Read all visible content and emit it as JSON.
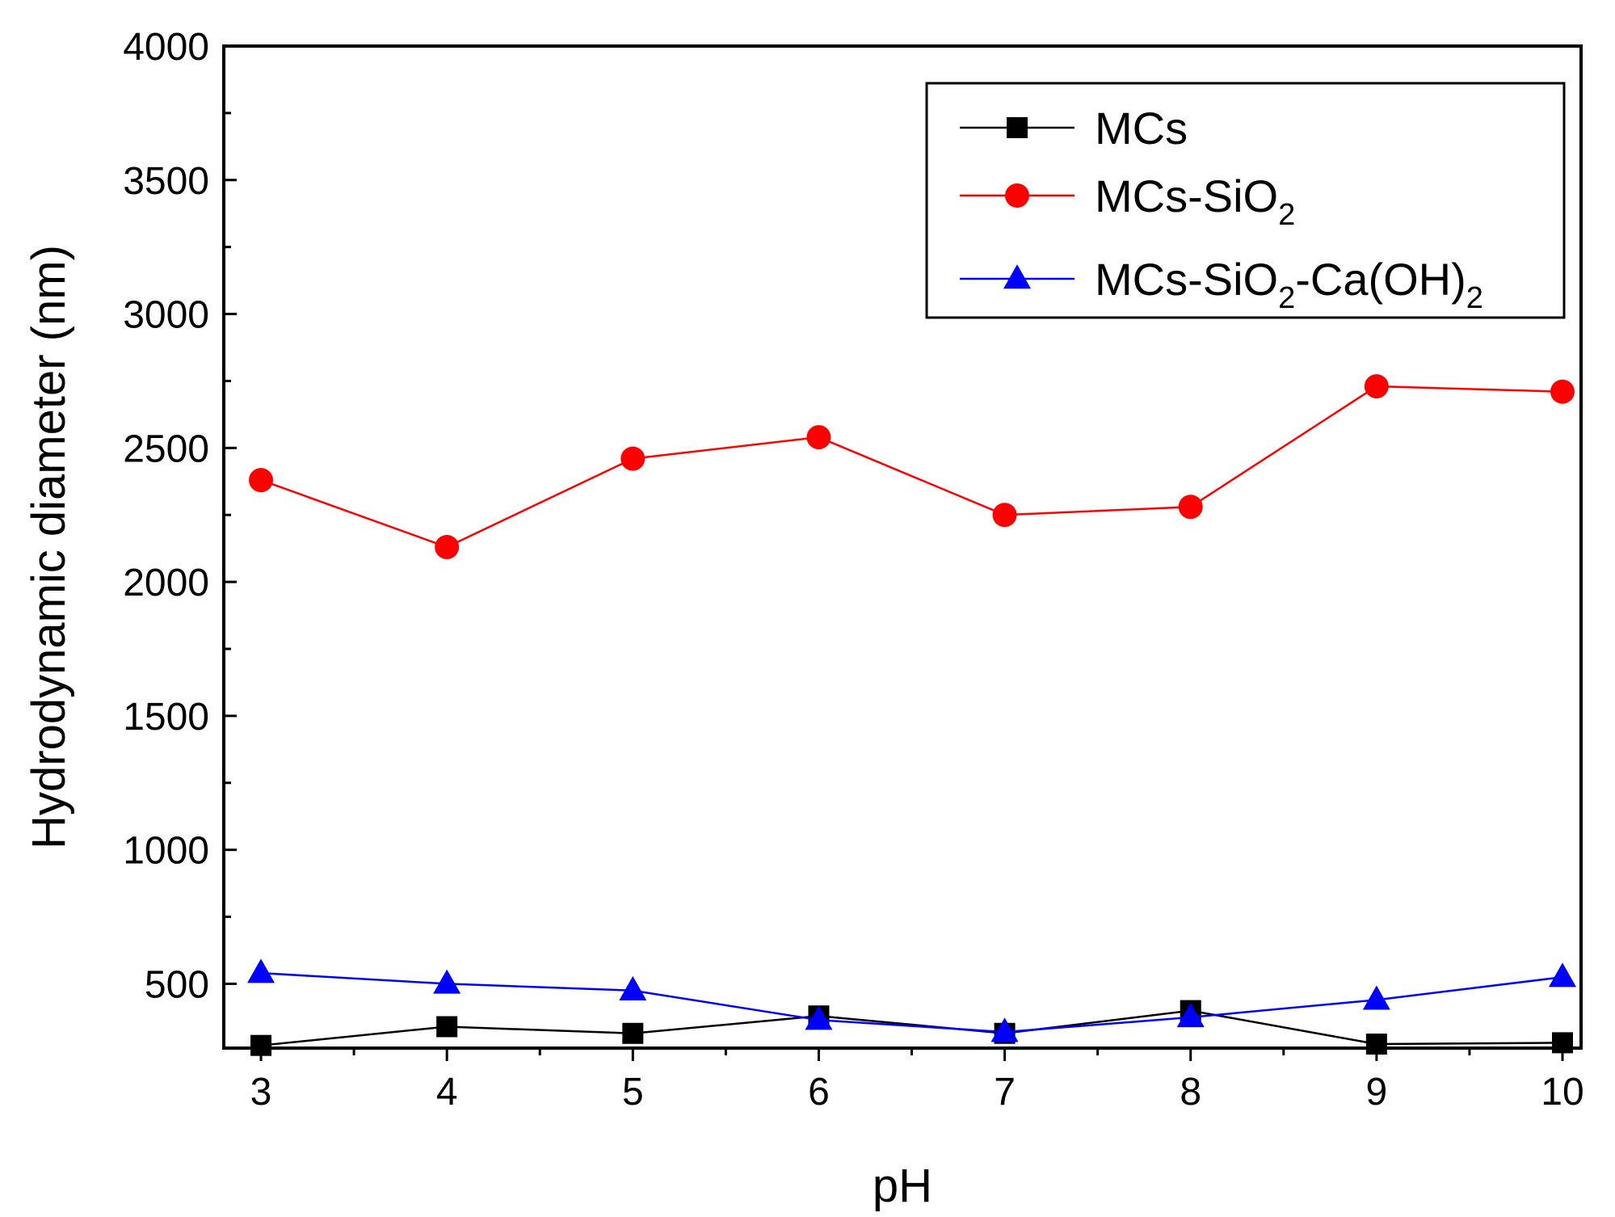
{
  "chart_data": {
    "type": "line",
    "title": "",
    "xlabel": "pH",
    "ylabel": "Hydrodynamic diameter (nm)",
    "x": [
      3,
      4,
      5,
      6,
      7,
      8,
      9,
      10
    ],
    "xlim": [
      2.8,
      10.1
    ],
    "ylim": [
      260,
      4000
    ],
    "xticks": [
      3,
      4,
      5,
      6,
      7,
      8,
      9,
      10
    ],
    "xtick_labels": [
      "3",
      "4",
      "5",
      "6",
      "7",
      "8",
      "9",
      "10"
    ],
    "xminor": [
      3.5,
      4.5,
      5.5,
      6.5,
      7.5,
      8.5,
      9.5
    ],
    "yticks": [
      500,
      1000,
      1500,
      2000,
      2500,
      3000,
      3500,
      4000
    ],
    "ytick_labels": [
      "500",
      "1000",
      "1500",
      "2000",
      "2500",
      "3000",
      "3500",
      "4000"
    ],
    "grid": false,
    "legend_position": "top-right",
    "series": [
      {
        "name": "MCs",
        "legend_parts": [
          "MCs"
        ],
        "color": "#000000",
        "marker": "square",
        "values": [
          270,
          340,
          315,
          380,
          315,
          400,
          275,
          280
        ]
      },
      {
        "name": "MCs-SiO2",
        "legend_parts": [
          "MCs-SiO",
          "2"
        ],
        "color": "#ff0000",
        "marker": "circle",
        "values": [
          2380,
          2130,
          2460,
          2540,
          2250,
          2280,
          2730,
          2710
        ]
      },
      {
        "name": "MCs-SiO2-Ca(OH)2",
        "legend_parts": [
          "MCs-SiO",
          "2",
          "-Ca(OH)",
          "2"
        ],
        "color": "#0000ff",
        "marker": "triangle",
        "values": [
          540,
          500,
          475,
          365,
          320,
          375,
          440,
          525
        ]
      }
    ]
  }
}
